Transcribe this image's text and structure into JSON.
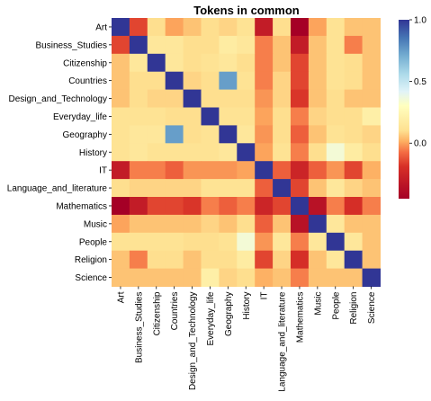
{
  "chart_data": {
    "type": "heatmap",
    "title": "Tokens in common",
    "xlabel": "",
    "ylabel": "",
    "categories": [
      "Art",
      "Business_Studies",
      "Citizenship",
      "Countries",
      "Design_and_Technology",
      "Everyday_life",
      "Geography",
      "History",
      "IT",
      "Language_and_literature",
      "Mathematics",
      "Music",
      "People",
      "Religion",
      "Science"
    ],
    "values": [
      [
        1.0,
        -0.15,
        0.1,
        0.0,
        0.05,
        0.1,
        0.08,
        0.12,
        -0.3,
        0.1,
        -0.45,
        0.0,
        0.12,
        0.05,
        0.05
      ],
      [
        -0.15,
        1.0,
        0.15,
        0.15,
        0.1,
        0.1,
        0.18,
        0.15,
        -0.05,
        0.05,
        -0.3,
        0.05,
        0.12,
        -0.05,
        0.05
      ],
      [
        0.05,
        0.15,
        1.0,
        0.15,
        0.1,
        0.12,
        0.15,
        0.1,
        -0.05,
        0.05,
        -0.15,
        0.05,
        0.12,
        0.1,
        0.05
      ],
      [
        0.05,
        0.1,
        0.1,
        1.0,
        0.08,
        0.1,
        0.75,
        0.12,
        -0.05,
        0.08,
        -0.15,
        0.05,
        0.12,
        0.1,
        0.05
      ],
      [
        0.05,
        0.1,
        0.08,
        0.08,
        1.0,
        0.1,
        0.1,
        0.1,
        -0.02,
        0.08,
        -0.18,
        0.05,
        0.1,
        0.05,
        0.05
      ],
      [
        0.12,
        0.12,
        0.12,
        0.1,
        0.1,
        1.0,
        0.12,
        0.12,
        0.0,
        0.1,
        -0.05,
        0.08,
        0.1,
        0.1,
        0.2
      ],
      [
        0.12,
        0.15,
        0.15,
        0.75,
        0.1,
        0.12,
        1.0,
        0.15,
        -0.02,
        0.1,
        -0.1,
        0.05,
        0.12,
        0.1,
        0.08
      ],
      [
        0.12,
        0.15,
        0.12,
        0.12,
        0.12,
        0.12,
        0.15,
        1.0,
        0.0,
        0.12,
        -0.05,
        0.1,
        0.35,
        0.18,
        0.1
      ],
      [
        -0.3,
        -0.05,
        -0.05,
        -0.1,
        -0.02,
        -0.02,
        -0.02,
        0.0,
        1.0,
        -0.1,
        -0.25,
        -0.1,
        -0.02,
        -0.15,
        0.02
      ],
      [
        0.1,
        0.08,
        0.08,
        0.08,
        0.08,
        0.12,
        0.12,
        0.12,
        -0.1,
        1.0,
        -0.15,
        0.05,
        0.15,
        0.08,
        0.05
      ],
      [
        -0.45,
        -0.3,
        -0.15,
        -0.15,
        -0.18,
        -0.05,
        -0.1,
        -0.05,
        -0.25,
        -0.15,
        1.0,
        -0.35,
        -0.05,
        -0.2,
        -0.05
      ],
      [
        0.0,
        0.05,
        0.05,
        0.05,
        0.05,
        0.08,
        0.05,
        0.1,
        -0.1,
        0.05,
        -0.35,
        1.0,
        0.15,
        0.05,
        0.05
      ],
      [
        0.12,
        0.12,
        0.12,
        0.12,
        0.1,
        0.1,
        0.12,
        0.35,
        -0.02,
        0.15,
        -0.05,
        0.15,
        1.0,
        0.15,
        0.05
      ],
      [
        0.05,
        -0.05,
        0.1,
        0.1,
        0.05,
        0.1,
        0.1,
        0.18,
        -0.15,
        0.08,
        -0.2,
        0.05,
        0.15,
        1.0,
        0.05
      ],
      [
        0.05,
        0.05,
        0.05,
        0.05,
        0.05,
        0.2,
        0.08,
        0.1,
        0.02,
        0.05,
        -0.05,
        0.05,
        0.05,
        0.05,
        1.0
      ]
    ],
    "zlim": [
      -0.45,
      1.0
    ],
    "colorbar_ticks": [
      "1.0",
      "0.5",
      "0.0"
    ],
    "colormap": "RdYlBu",
    "grid": false,
    "legend": "right colorbar"
  }
}
